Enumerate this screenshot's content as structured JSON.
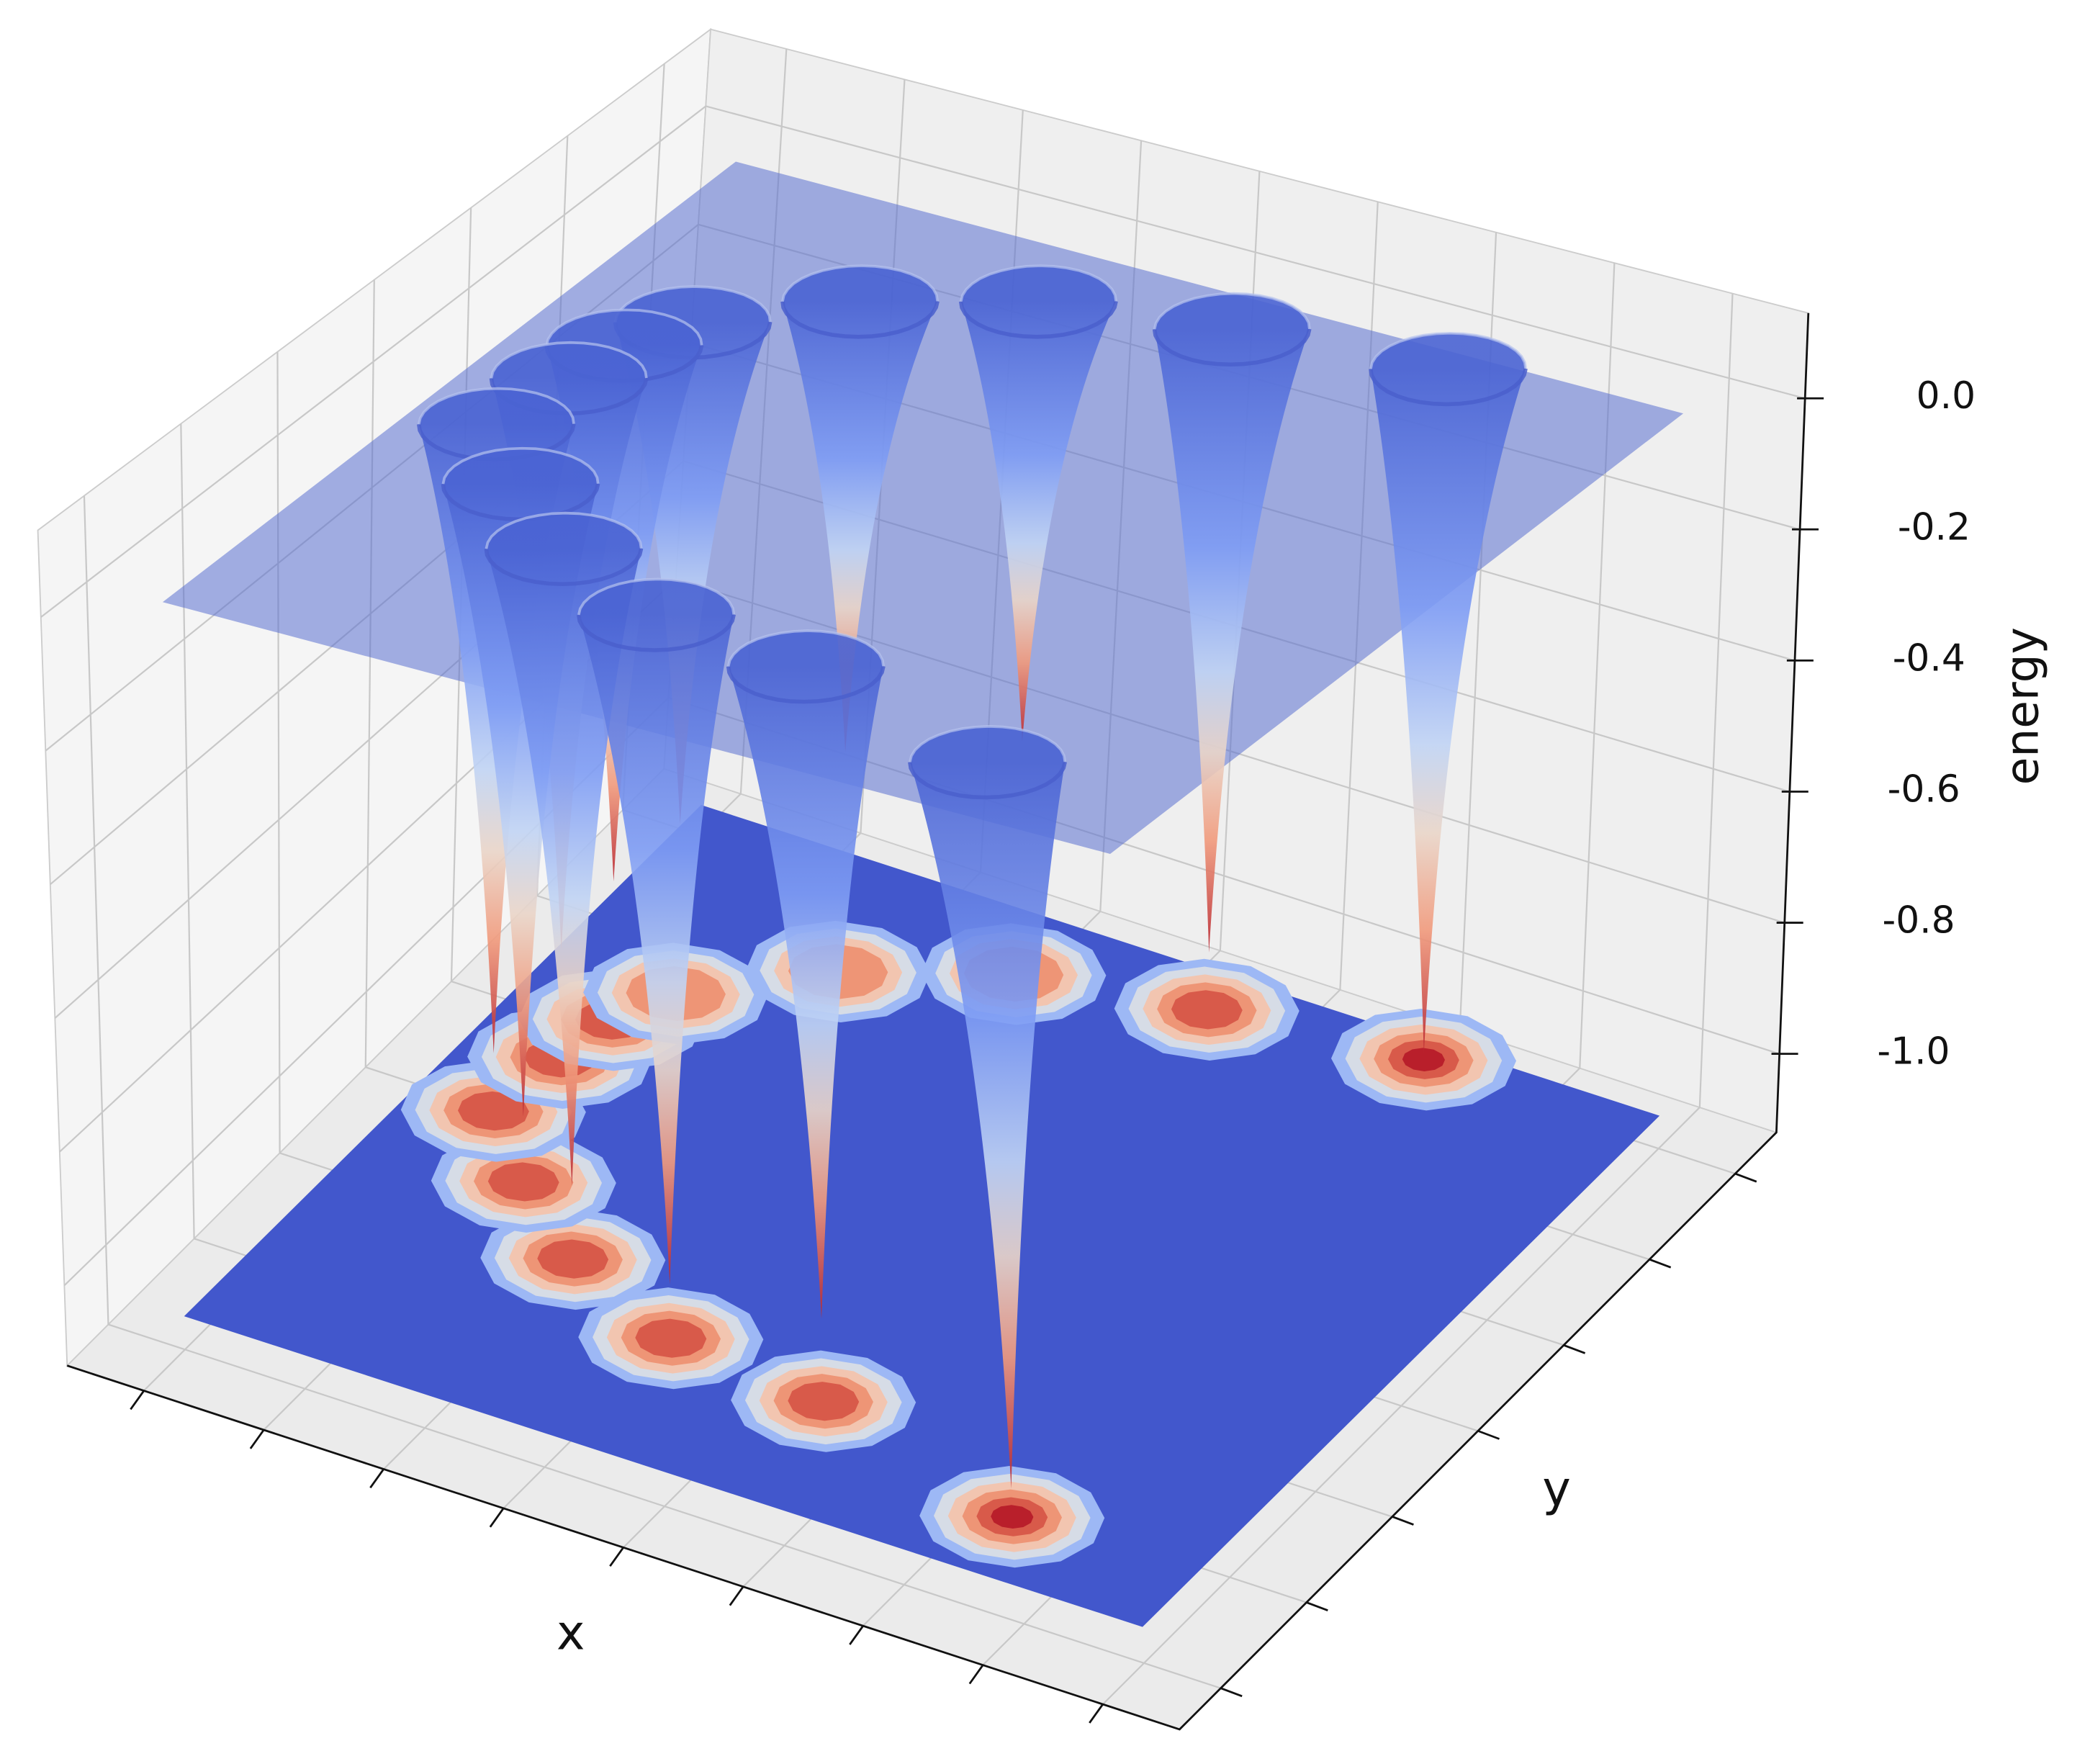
{
  "chart_data": {
    "type": "surface3d",
    "xlabel": "x",
    "ylabel": "y",
    "zlabel": "energy",
    "xlim": [
      0,
      1
    ],
    "ylim": [
      0,
      1
    ],
    "zlim": [
      -1.12,
      0.13
    ],
    "zticks": [
      {
        "value": 0,
        "label": "0.0"
      },
      -0.2,
      -0.4,
      -0.6,
      -0.8,
      {
        "value": -1,
        "label": "-1.0"
      }
    ],
    "surface_level": 0,
    "colormap": "coolwarm",
    "plane_color": "#5a6fd0",
    "floor_color": "#4257cc",
    "wells": {
      "x": [
        0.81,
        0.57,
        0.4,
        0.26,
        0.16,
        0.08,
        0.09,
        0.1,
        0.13,
        0.24,
        0.38,
        0.56,
        0.77
      ],
      "y": [
        0.1,
        0.18,
        0.2,
        0.27,
        0.36,
        0.45,
        0.56,
        0.64,
        0.71,
        0.82,
        0.9,
        0.94,
        0.97
      ],
      "min_energy": [
        -1.03,
        -0.95,
        -0.99,
        -0.96,
        -0.97,
        -0.98,
        -0.9,
        -0.85,
        -0.8,
        -0.72,
        -0.7,
        -0.98,
        -1.06
      ]
    }
  }
}
